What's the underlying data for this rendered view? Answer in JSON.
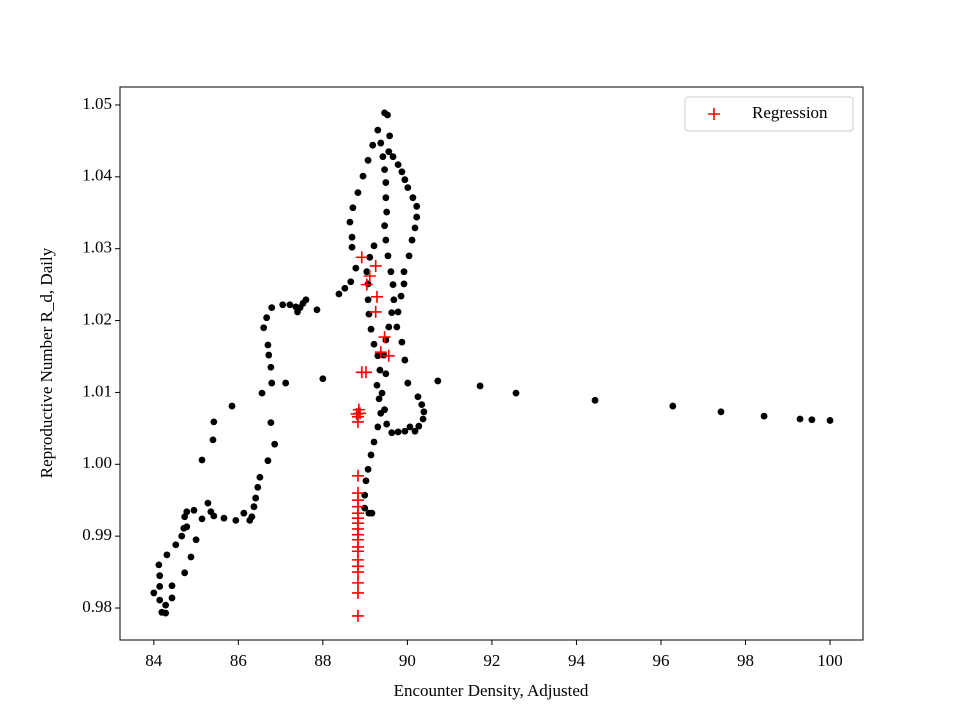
{
  "chart_data": {
    "type": "scatter",
    "xlabel": "Encounter Density, Adjusted",
    "ylabel": "Reproductive Number R_d, Daily",
    "xlim": [
      83.2,
      100.78
    ],
    "ylim": [
      0.97555,
      1.0525
    ],
    "xticks": [
      84,
      86,
      88,
      90,
      92,
      94,
      96,
      98,
      100
    ],
    "yticks": [
      0.98,
      0.99,
      {
        "value": 1,
        "label": "1.00"
      },
      1.01,
      1.02,
      1.03,
      1.04,
      1.05
    ],
    "legend": "upper right",
    "series": [
      {
        "color": "#000000",
        "marker": "o",
        "x": [
          100,
          99.57,
          99.29,
          98.44,
          97.42,
          96.28,
          94.44,
          92.57,
          91.72,
          90.72,
          84,
          84.12,
          84.14,
          84.14,
          84.14,
          84.19,
          84.28,
          84.28,
          84.43,
          84.43,
          84.31,
          84.52,
          84.66,
          84.71,
          84.73,
          84.78,
          84.95,
          84.73,
          84.88,
          85.0,
          84.78,
          85.14,
          85.14,
          85.28,
          85.35,
          85.42,
          85.4,
          85.42,
          85.66,
          85.85,
          85.94,
          86.13,
          86.27,
          86.32,
          86.37,
          86.41,
          86.46,
          86.51,
          86.7,
          86.86,
          86.77,
          86.56,
          86.79,
          86.77,
          86.72,
          86.7,
          86.6,
          86.67,
          86.79,
          87.05,
          87.22,
          87.36,
          87.4,
          87.46,
          87.53,
          87.6,
          87.12,
          87.86,
          88.0,
          88.38,
          88.52,
          88.66,
          88.78,
          88.69,
          88.69,
          88.64,
          88.71,
          88.83,
          88.95,
          89.07,
          89.18,
          89.3,
          89.37,
          89.46,
          89.53,
          89.58,
          89.56,
          89.66,
          89.78,
          89.87,
          89.94,
          90.01,
          90.13,
          90.22,
          90.22,
          90.18,
          90.11,
          90.04,
          89.92,
          89.92,
          89.85,
          89.78,
          89.75,
          89.87,
          89.94,
          90.01,
          90.25,
          90.34,
          90.39,
          90.37,
          90.27,
          90.18,
          90.06,
          89.94,
          89.78,
          89.63,
          89.51,
          89.46,
          89.4,
          89.49,
          89.44,
          89.49,
          89.56,
          89.63,
          89.68,
          89.66,
          89.61,
          89.54,
          89.49,
          89.46,
          89.51,
          89.49,
          89.49,
          89.46,
          89.42,
          89.21,
          89.11,
          89.04,
          89.07,
          89.07,
          89.09,
          89.14,
          89.21,
          89.3,
          89.35,
          89.28,
          89.33,
          89.37,
          89.3,
          89.21,
          89.14,
          89.07,
          89.02,
          88.99,
          88.99,
          89.09,
          89.16
        ],
        "values": [
          1.0061,
          1.0062,
          1.0063,
          1.0067,
          1.0073,
          1.0081,
          1.0089,
          1.0099,
          1.0109,
          1.0116,
          0.9821,
          0.986,
          0.9845,
          0.983,
          0.9811,
          0.9794,
          0.9793,
          0.9804,
          0.9814,
          0.9831,
          0.9874,
          0.9888,
          0.99,
          0.9911,
          0.9927,
          0.9934,
          0.9936,
          0.9849,
          0.9871,
          0.9895,
          0.9913,
          1.0006,
          0.9924,
          0.9946,
          0.9934,
          0.9928,
          1.0034,
          1.0059,
          0.9925,
          1.0081,
          0.9922,
          0.9932,
          0.9922,
          0.9927,
          0.9941,
          0.9953,
          0.9968,
          0.9982,
          1.0005,
          1.0028,
          1.0058,
          1.0099,
          1.0113,
          1.0135,
          1.0152,
          1.0166,
          1.019,
          1.0204,
          1.0218,
          1.0222,
          1.0222,
          1.0219,
          1.0212,
          1.0218,
          1.0224,
          1.0229,
          1.0113,
          1.0215,
          1.0119,
          1.0237,
          1.0245,
          1.0254,
          1.0273,
          1.0302,
          1.0316,
          1.0337,
          1.0357,
          1.0378,
          1.0401,
          1.0423,
          1.0444,
          1.0465,
          1.0447,
          1.0489,
          1.0486,
          1.0457,
          1.0435,
          1.0428,
          1.0417,
          1.0407,
          1.0396,
          1.0385,
          1.0371,
          1.0359,
          1.0344,
          1.0329,
          1.0312,
          1.029,
          1.0268,
          1.0251,
          1.0234,
          1.0212,
          1.0191,
          1.017,
          1.0145,
          1.0113,
          1.0094,
          1.0083,
          1.0073,
          1.0063,
          1.0053,
          1.0046,
          1.0052,
          1.0046,
          1.0045,
          1.0044,
          1.0056,
          1.0076,
          1.0099,
          1.0126,
          1.0152,
          1.0173,
          1.0191,
          1.0211,
          1.0229,
          1.025,
          1.0268,
          1.029,
          1.0312,
          1.0332,
          1.0351,
          1.0371,
          1.0392,
          1.041,
          1.0428,
          1.0304,
          1.0288,
          1.0268,
          1.0251,
          1.0229,
          1.0209,
          1.0188,
          1.0167,
          1.0151,
          1.0131,
          1.011,
          1.0091,
          1.0071,
          1.0052,
          1.0031,
          1.0013,
          0.9993,
          0.9977,
          0.9957,
          0.9939,
          0.9932,
          0.9932
        ]
      },
      {
        "name": "Regression",
        "color": "#ff0000",
        "marker": "+",
        "x": [
          88.83,
          88.83,
          88.83,
          88.83,
          88.83,
          88.83,
          88.83,
          88.83,
          88.83,
          88.83,
          88.83,
          88.83,
          88.83,
          88.83,
          88.83,
          88.83,
          88.83,
          88.83,
          88.83,
          88.83,
          88.8,
          88.88,
          88.85,
          88.92,
          89.02,
          89.56,
          89.37,
          89.46,
          89.25,
          89.28,
          89.04,
          89.11,
          89.25,
          88.92
        ],
        "values": [
          0.9789,
          0.9821,
          0.9835,
          0.985,
          0.9858,
          0.9867,
          0.9879,
          0.9885,
          0.9895,
          0.9902,
          0.991,
          0.9918,
          0.9925,
          0.9932,
          0.9941,
          0.995,
          0.996,
          0.9984,
          1.0059,
          1.0066,
          1.007,
          1.0071,
          1.0076,
          1.0128,
          1.0128,
          1.0151,
          1.0156,
          1.0177,
          1.0212,
          1.0233,
          1.025,
          1.0262,
          1.0276,
          1.0288
        ]
      }
    ]
  }
}
